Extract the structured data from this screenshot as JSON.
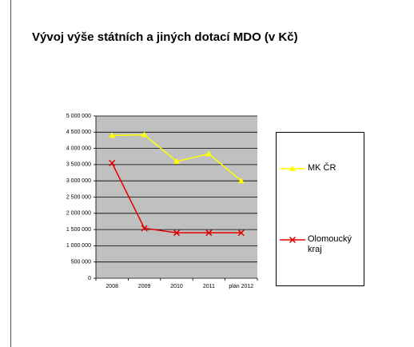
{
  "chart_data": {
    "type": "line",
    "title": "Vývoj výše státních a jiných dotací MDO (v Kč)",
    "categories": [
      "2008",
      "2009",
      "2010",
      "2011",
      "plán 2012"
    ],
    "series": [
      {
        "name": "MK ČR",
        "color": "#ffff00",
        "marker": "triangle",
        "values": [
          4400000,
          4420000,
          3600000,
          3830000,
          3000000
        ]
      },
      {
        "name": "Olomoucký kraj",
        "color": "#e00000",
        "marker": "x",
        "values": [
          3550000,
          1540000,
          1400000,
          1400000,
          1400000
        ]
      }
    ],
    "ylim": [
      0,
      5000000
    ],
    "yticks": [
      0,
      {
        "value": 500000,
        "label": "500 000"
      },
      {
        "value": 1000000,
        "label": "1 000 000"
      },
      {
        "value": 1500000,
        "label": "1 500 000"
      },
      {
        "value": 2000000,
        "label": "2 000 000"
      },
      {
        "value": 2500000,
        "label": "2 500 000"
      },
      {
        "value": 3000000,
        "label": "3 000 000"
      },
      {
        "value": 3500000,
        "label": "3 500 000"
      },
      {
        "value": 4000000,
        "label": "4 000 000"
      },
      {
        "value": 4500000,
        "label": "4 500 000"
      },
      {
        "value": 5000000,
        "label": "5 000 000"
      }
    ],
    "grid": true,
    "legend": "right"
  }
}
